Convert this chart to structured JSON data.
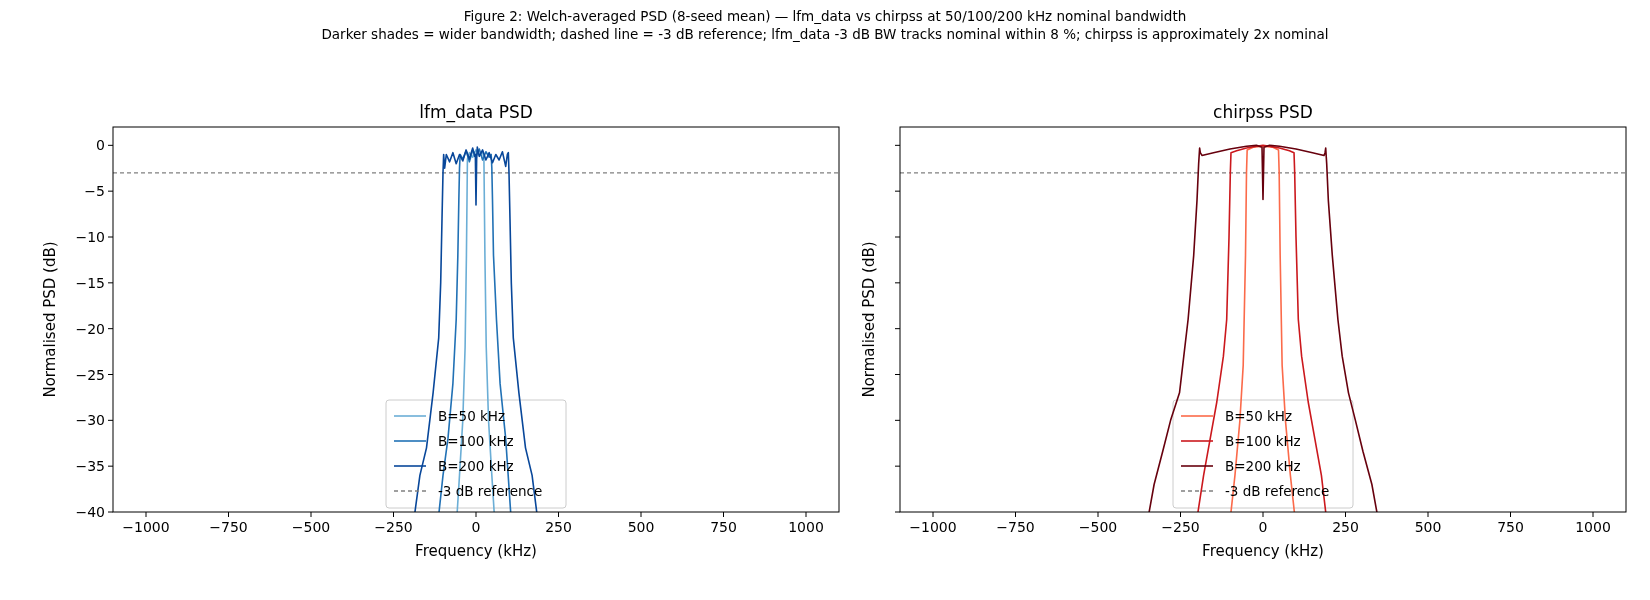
{
  "chart_data": [
    {
      "type": "other",
      "title": "Figure 2: Welch-averaged PSD (8-seed mean) — lfm_data vs chirpss at 50/100/200 kHz nominal bandwidth",
      "subtitle": "Darker shades = wider bandwidth; dashed line = -3 dB reference; lfm_data -3 dB BW tracks nominal within 8 %; chirpss is approximately 2x nominal"
    },
    {
      "type": "line",
      "title": "lfm_data PSD",
      "xlabel": "Frequency (kHz)",
      "ylabel": "Normalised PSD (dB)",
      "xlim": [
        -1100,
        1100
      ],
      "ylim": [
        -40,
        2
      ],
      "xticks": [
        {
          "value": -1000,
          "label": "−1000"
        },
        {
          "value": -750,
          "label": "−750"
        },
        {
          "value": -500,
          "label": "−500"
        },
        {
          "value": -250,
          "label": "−250"
        },
        0,
        250,
        500,
        750,
        1000
      ],
      "yticks": [
        {
          "value": -40,
          "label": "−40"
        },
        {
          "value": -35,
          "label": "−35"
        },
        {
          "value": -30,
          "label": "−30"
        },
        {
          "value": -25,
          "label": "−25"
        },
        {
          "value": -20,
          "label": "−20"
        },
        {
          "value": -15,
          "label": "−15"
        },
        {
          "value": -10,
          "label": "−10"
        },
        {
          "value": -5,
          "label": "−5"
        },
        0
      ],
      "legend": "bottom",
      "line_style": "solid",
      "ref_lines": [
        {
          "axis": "y",
          "value": -3,
          "label": "-3 dB reference",
          "color": "#808080",
          "line_style": "dashed"
        }
      ],
      "series": [
        {
          "name": "B=50 kHz",
          "color": "#6baed6",
          "x": [
            -57,
            -50,
            -40,
            -33,
            -29,
            -27,
            -26,
            -20,
            -10,
            0,
            10,
            20,
            24,
            25,
            27,
            31,
            38,
            48,
            55
          ],
          "values": [
            -40,
            -36,
            -30,
            -22,
            -12,
            -5,
            -1.5,
            -0.8,
            -1.3,
            -0.5,
            -1.1,
            -0.7,
            -1.5,
            -5,
            -12,
            -22,
            -30,
            -36,
            -40
          ]
        },
        {
          "name": "B=100 kHz",
          "color": "#2171b5",
          "x": [
            -112,
            -100,
            -85,
            -70,
            -60,
            -55,
            -52,
            -50,
            -48,
            -40,
            -30,
            -20,
            -10,
            0,
            10,
            20,
            30,
            40,
            46,
            48,
            50,
            53,
            62,
            73,
            90,
            105
          ],
          "values": [
            -40,
            -36,
            -32,
            -26,
            -19,
            -12,
            -6,
            -2.5,
            -1,
            -1.5,
            -0.6,
            -1.8,
            -0.5,
            -1.2,
            -0.4,
            -1.6,
            -0.7,
            -1.3,
            -1,
            -2.5,
            -6,
            -12,
            -19,
            -26,
            -32,
            -40
          ]
        },
        {
          "name": "B=200 kHz",
          "color": "#08479a",
          "x": [
            -185,
            -170,
            -150,
            -130,
            -113,
            -107,
            -103,
            -100,
            -98,
            -95,
            -90,
            -80,
            -70,
            -60,
            -50,
            -40,
            -30,
            -20,
            -10,
            -4,
            -2,
            0,
            2,
            4,
            10,
            20,
            30,
            40,
            50,
            60,
            70,
            80,
            90,
            95,
            98,
            100,
            103,
            107,
            113,
            130,
            150,
            170,
            184
          ],
          "values": [
            -40,
            -36,
            -33,
            -27,
            -21,
            -15,
            -8,
            -3,
            -1,
            -2.5,
            -1,
            -1.8,
            -0.8,
            -2,
            -1,
            -1.7,
            -0.5,
            -1.5,
            -0.3,
            -1.2,
            -1,
            -6.5,
            -1.5,
            -0.2,
            -1.2,
            -0.5,
            -1.6,
            -0.8,
            -1.9,
            -1,
            -1.6,
            -0.7,
            -2.3,
            -1,
            -0.8,
            -3,
            -8,
            -15,
            -21,
            -27,
            -33,
            -36,
            -40
          ]
        }
      ]
    },
    {
      "type": "line",
      "title": "chirpss PSD",
      "xlabel": "Frequency (kHz)",
      "ylabel": "Normalised PSD (dB)",
      "xlim": [
        -1100,
        1100
      ],
      "ylim": [
        -40,
        2
      ],
      "tick_labels": "x",
      "xticks": [
        {
          "value": -1000,
          "label": "−1000"
        },
        {
          "value": -750,
          "label": "−750"
        },
        {
          "value": -500,
          "label": "−500"
        },
        {
          "value": -250,
          "label": "−250"
        },
        0,
        250,
        500,
        750,
        1000
      ],
      "yticks": [
        {
          "value": -40,
          "label": null
        },
        {
          "value": -35,
          "label": null
        },
        {
          "value": -30,
          "label": null
        },
        {
          "value": -25,
          "label": null
        },
        {
          "value": -20,
          "label": null
        },
        {
          "value": -15,
          "label": null
        },
        {
          "value": -10,
          "label": null
        },
        {
          "value": -5,
          "label": null
        },
        {
          "value": 0,
          "label": null
        }
      ],
      "legend": "bottom",
      "line_style": "solid",
      "ref_lines": [
        {
          "axis": "y",
          "value": -3,
          "label": "-3 dB reference",
          "color": "#808080",
          "line_style": "dashed"
        }
      ],
      "series": [
        {
          "name": "B=50 kHz",
          "color": "#fb6a4a",
          "x": [
            -97,
            -85,
            -70,
            -60,
            -53,
            -50,
            -48,
            -30,
            0,
            30,
            47,
            49,
            52,
            58,
            68,
            83,
            95
          ],
          "values": [
            -40,
            -36,
            -30,
            -24,
            -12,
            -3,
            -0.5,
            -0.2,
            -0.1,
            -0.2,
            -0.5,
            -3,
            -12,
            -24,
            -30,
            -36,
            -40
          ]
        },
        {
          "name": "B=100 kHz",
          "color": "#cb181d",
          "x": [
            -197,
            -180,
            -160,
            -140,
            -120,
            -110,
            -103,
            -99,
            -97,
            -80,
            -50,
            -20,
            0,
            20,
            50,
            80,
            94,
            96,
            100,
            107,
            117,
            137,
            157,
            177,
            190
          ],
          "values": [
            -40,
            -36,
            -32,
            -28,
            -23,
            -19,
            -10,
            -3,
            -0.8,
            -0.6,
            -0.3,
            -0.1,
            0,
            -0.1,
            -0.3,
            -0.6,
            -0.8,
            -3,
            -10,
            -19,
            -23,
            -28,
            -32,
            -36,
            -40
          ]
        },
        {
          "name": "B=200 kHz",
          "color": "#67000d",
          "x": [
            -345,
            -330,
            -304,
            -280,
            -253,
            -240,
            -227,
            -210,
            -200,
            -195,
            -192,
            -190,
            -185,
            -150,
            -100,
            -50,
            -20,
            -3,
            0,
            3,
            20,
            50,
            100,
            150,
            185,
            188,
            190,
            193,
            198,
            210,
            227,
            240,
            259,
            280,
            303,
            330,
            345
          ],
          "values": [
            -40,
            -37,
            -33.4,
            -30,
            -27,
            -23,
            -19,
            -12,
            -6,
            -2,
            -0.3,
            -0.8,
            -1.1,
            -0.8,
            -0.4,
            -0.1,
            0,
            -0.2,
            -5.9,
            -0.2,
            0,
            -0.1,
            -0.4,
            -0.8,
            -1.1,
            -0.8,
            -0.3,
            -2,
            -6,
            -12,
            -19,
            -23,
            -27,
            -30,
            -33.4,
            -37,
            -40
          ]
        }
      ]
    }
  ]
}
